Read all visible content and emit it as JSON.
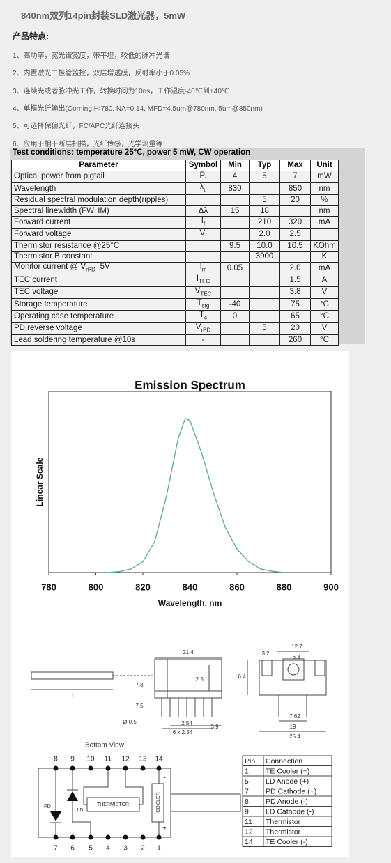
{
  "header": {
    "title": "840nm双列14pin封装SLD激光器，5mW",
    "features_title": "产品特点:",
    "features": [
      "1、高功率，宽光谱宽度，带平坦，较低的脉冲光谱",
      "2、内置激光二极管监控，双层增透膜，反射率小于0.05%",
      "3、连续光或者脉冲光工作，转换时间为10ns，工作温度-40℃到+40℃",
      "4、单模光纤输出(Corning HI780, NA=0.14, MFD=4.5um@780nm, 5um@850nm)",
      "5、可选择保偏光纤，FC/APC光纤连接头",
      "6、应用于相干断层扫描，光纤传感，光学测量等"
    ]
  },
  "table": {
    "caption": "Test conditions: temperature 25°C, power 5 mW, CW operation",
    "columns": [
      "Parameter",
      "Symbol",
      "Min",
      "Typ",
      "Max",
      "Unit"
    ],
    "rows": [
      [
        "Optical power from pigtail",
        [
          "P",
          "f"
        ],
        "4",
        "5",
        "7",
        "mW"
      ],
      [
        "Wavelength",
        [
          "λ",
          "c"
        ],
        "830",
        null,
        "850",
        "nm"
      ],
      [
        "Residual spectral modulation depth(ripples)",
        null,
        null,
        "5",
        "20",
        "%"
      ],
      [
        "Spectral linewidth (FWHM)",
        "Δλ",
        "15",
        "18",
        null,
        "nm"
      ],
      [
        "Forward current",
        [
          "I",
          "f"
        ],
        null,
        "210",
        "320",
        "mA"
      ],
      [
        "Forward voltage",
        [
          "V",
          "f"
        ],
        null,
        "2.0",
        "2.5",
        null
      ],
      [
        "Thermistor resistance @25°C",
        null,
        "9.5",
        "10.0",
        "10.5",
        "KOhm"
      ],
      [
        "Thermistor B constant",
        null,
        null,
        "3900",
        null,
        "K"
      ],
      [
        [
          "Monitor current @ V",
          "rPD",
          "=5V"
        ],
        [
          "I",
          "m"
        ],
        "0.05",
        null,
        "2.0",
        "mA"
      ],
      [
        "TEC current",
        [
          "I",
          "TEC"
        ],
        null,
        null,
        "1.5",
        "A"
      ],
      [
        "TEC voltage",
        [
          "V",
          "TEC"
        ],
        null,
        null,
        "3.8",
        "V"
      ],
      [
        "Storage temperature",
        [
          "T",
          "stg"
        ],
        "-40",
        null,
        "75",
        "°C"
      ],
      [
        "Operating case temperature",
        [
          "T",
          "c"
        ],
        "0",
        null,
        "65",
        "°C"
      ],
      [
        "PD reverse voltage",
        [
          "V",
          "rPD"
        ],
        null,
        "5",
        "20",
        "V"
      ],
      [
        "Lead soldering temperature @10s",
        "-",
        null,
        null,
        "260",
        "°C"
      ]
    ]
  },
  "chart_data": {
    "type": "line",
    "title": "Emission Spectrum",
    "x_label": "Wavelength, nm",
    "y_label": "Linear Scale",
    "x": [
      805,
      810,
      815,
      820,
      825,
      830,
      835,
      838,
      840,
      845,
      850,
      855,
      860,
      865,
      870,
      875,
      880
    ],
    "series": [
      {
        "name": "Emission",
        "color": "#5aab85",
        "values": [
          0,
          0.005,
          0.02,
          0.06,
          0.17,
          0.42,
          0.74,
          0.85,
          0.84,
          0.66,
          0.44,
          0.25,
          0.13,
          0.06,
          0.02,
          0.007,
          0
        ]
      }
    ],
    "xlim": [
      780,
      900
    ],
    "xticks": [
      780,
      800,
      820,
      840,
      860,
      880,
      900
    ],
    "ylim": [
      0,
      1
    ],
    "grid": false
  },
  "drawing": {
    "side_dimensions": [
      "21.4",
      "12.5",
      "7.8",
      "L",
      "7.5",
      "Ø 0.5",
      "2.54",
      "6 x 2.54",
      "3.9"
    ],
    "front_dimensions": [
      "12.7",
      "3.2",
      "6.3",
      "6.4",
      "7.62",
      "19",
      "25.4"
    ],
    "bottom_view": {
      "title": "Bottom View",
      "top_pins": [
        "8",
        "9",
        "10",
        "11",
        "12",
        "13",
        "14"
      ],
      "bottom_pins": [
        "7",
        "6",
        "5",
        "4",
        "3",
        "2",
        "1"
      ],
      "pd": "PD",
      "ld": "LD",
      "thermistor": "THERMISTOR",
      "cooler": "COOLER",
      "minus": "-",
      "plus": "+"
    },
    "pin_table": {
      "columns": [
        "Pin",
        "Connection"
      ],
      "rows": [
        [
          "1",
          "TE Cooler (+)"
        ],
        [
          "5",
          "LD Anode (+)"
        ],
        [
          "7",
          "PD Cathode (+)"
        ],
        [
          "8",
          "PD Anode (-)"
        ],
        [
          "9",
          "LD Cathode (-)"
        ],
        [
          "11",
          "Thermistor"
        ],
        [
          "12",
          "Thermistor"
        ],
        [
          "14",
          "TE Cooler (-)"
        ]
      ]
    }
  }
}
